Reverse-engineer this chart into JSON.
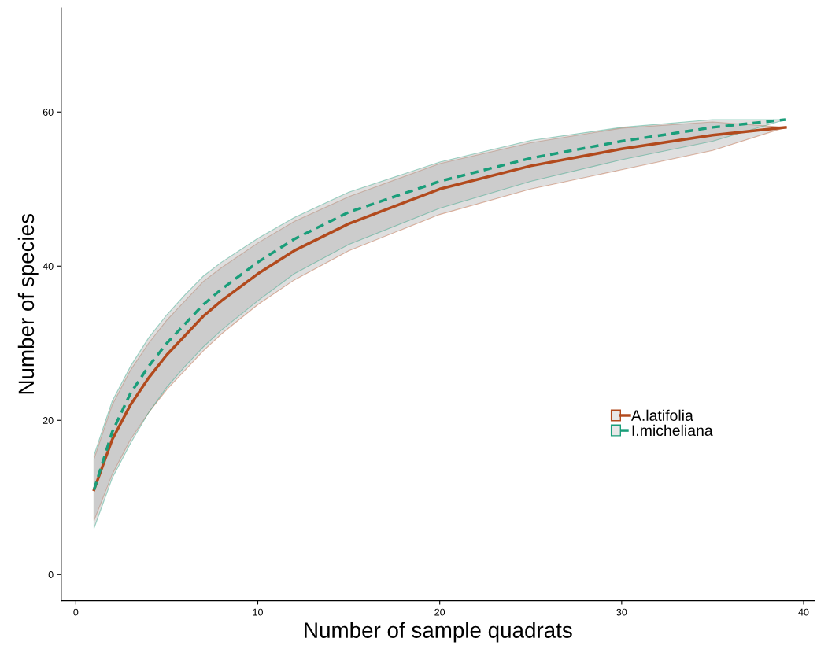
{
  "chart_data": {
    "type": "line",
    "xlabel": "Number of sample quadrats",
    "ylabel": "Number of species",
    "x": [
      1,
      2,
      3,
      4,
      5,
      6,
      7,
      8,
      10,
      12,
      15,
      20,
      25,
      30,
      35,
      39
    ],
    "series": [
      {
        "name": "A.latifolia",
        "color": "#b24a1d",
        "line_style": "solid",
        "values": [
          11,
          17.5,
          22,
          25.5,
          28.5,
          31,
          33.5,
          35.5,
          39,
          42,
          45.5,
          50,
          53,
          55.2,
          57,
          58
        ],
        "lower": [
          7,
          13,
          17.5,
          21,
          24,
          26.5,
          29,
          31.2,
          35,
          38.2,
          42,
          46.7,
          50,
          52.5,
          55,
          58
        ],
        "upper": [
          15,
          22,
          26.5,
          30,
          33,
          35.5,
          38,
          39.8,
          43,
          45.8,
          49,
          53.3,
          56,
          57.9,
          58.7,
          58
        ]
      },
      {
        "name": "I.micheliana",
        "color": "#1a9e7a",
        "line_style": "dashed",
        "values": [
          11,
          18.5,
          23.5,
          27,
          30,
          32.5,
          35,
          37,
          40.5,
          43.5,
          47,
          51,
          54,
          56.2,
          58,
          59
        ],
        "lower": [
          6,
          12.5,
          17,
          21,
          24.3,
          27,
          29.5,
          31.7,
          35.5,
          39,
          42.8,
          47.5,
          51,
          53.8,
          56.2,
          59
        ],
        "upper": [
          15.5,
          22.5,
          27,
          30.7,
          33.7,
          36.3,
          38.7,
          40.5,
          43.6,
          46.3,
          49.6,
          53.5,
          56.3,
          58,
          59,
          59
        ]
      }
    ],
    "xlim": [
      -0.8,
      40.6
    ],
    "ylim": [
      -3.4,
      73.5
    ],
    "xticks": [
      0,
      10,
      20,
      30,
      40
    ],
    "yticks": [
      0,
      20,
      40,
      60
    ],
    "grid": false,
    "legend": "right"
  }
}
